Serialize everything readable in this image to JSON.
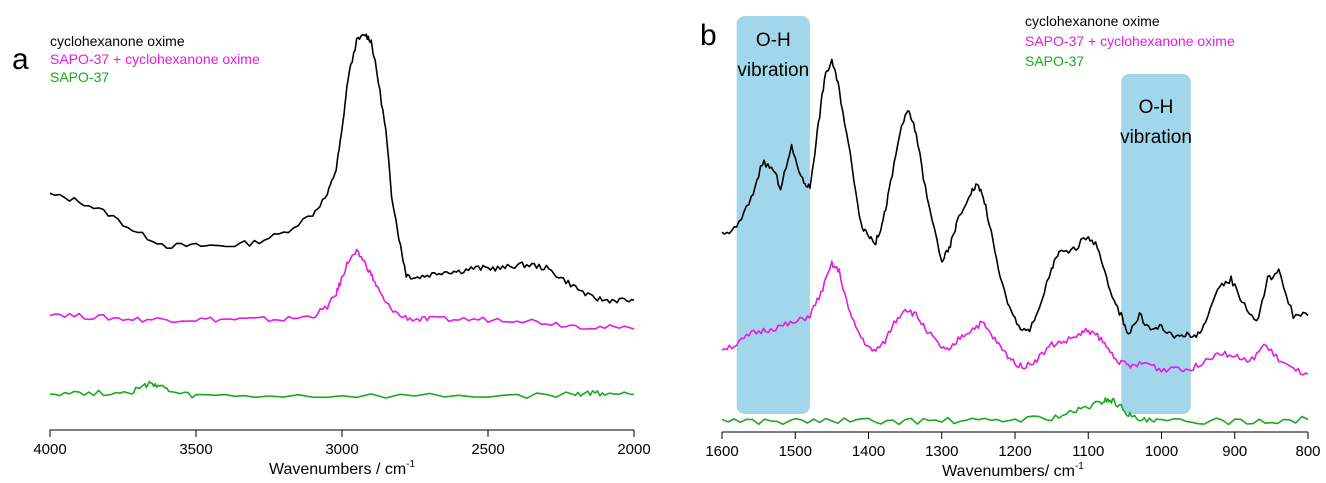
{
  "colors": {
    "black": "#000000",
    "magenta": "#e619e6",
    "green": "#1aaa1a",
    "highlight": "#92cfe6"
  },
  "chart_data": [
    {
      "type": "line",
      "panel": "a",
      "xlabel": "Wavenumbers / cm",
      "xlabel_sup": "-1",
      "xlim": [
        4000,
        2000
      ],
      "x_reversed": true,
      "xticks": [
        4000,
        3500,
        3000,
        2500,
        2000
      ],
      "y_axis_shown": false,
      "grid": false,
      "legend": {
        "placement": "top-left",
        "entries": [
          "cyclohexanone oxime",
          "SAPO-37 + cyclohexanone oxime",
          "SAPO-37"
        ]
      },
      "series": [
        {
          "name": "cyclohexanone oxime",
          "color": "#000000",
          "x": [
            4000,
            3900,
            3800,
            3700,
            3600,
            3500,
            3400,
            3300,
            3200,
            3100,
            3050,
            3020,
            3000,
            2980,
            2950,
            2920,
            2900,
            2880,
            2850,
            2830,
            2800,
            2780,
            2750,
            2700,
            2650,
            2600,
            2550,
            2500,
            2450,
            2400,
            2350,
            2300,
            2250,
            2200,
            2150,
            2100,
            2050,
            2000
          ],
          "y": [
            0.72,
            0.7,
            0.66,
            0.6,
            0.56,
            0.56,
            0.56,
            0.57,
            0.6,
            0.66,
            0.72,
            0.8,
            0.92,
            1.08,
            1.2,
            1.22,
            1.2,
            1.1,
            0.92,
            0.72,
            0.56,
            0.47,
            0.46,
            0.47,
            0.48,
            0.48,
            0.49,
            0.49,
            0.49,
            0.5,
            0.5,
            0.49,
            0.46,
            0.43,
            0.4,
            0.39,
            0.39,
            0.39
          ]
        },
        {
          "name": "SAPO-37 + cyclohexanone oxime",
          "color": "#e619e6",
          "x": [
            4000,
            3900,
            3800,
            3700,
            3600,
            3500,
            3400,
            3300,
            3200,
            3100,
            3050,
            3020,
            3000,
            2980,
            2950,
            2930,
            2900,
            2880,
            2850,
            2800,
            2750,
            2700,
            2600,
            2500,
            2400,
            2300,
            2200,
            2100,
            2000
          ],
          "y": [
            0.35,
            0.34,
            0.335,
            0.33,
            0.33,
            0.33,
            0.33,
            0.33,
            0.33,
            0.34,
            0.37,
            0.41,
            0.46,
            0.51,
            0.54,
            0.52,
            0.47,
            0.43,
            0.38,
            0.34,
            0.33,
            0.33,
            0.33,
            0.33,
            0.33,
            0.32,
            0.31,
            0.305,
            0.3
          ]
        },
        {
          "name": "SAPO-37",
          "color": "#1aaa1a",
          "x": [
            4000,
            3900,
            3800,
            3720,
            3680,
            3650,
            3620,
            3580,
            3500,
            3300,
            3000,
            2700,
            2400,
            2200,
            2150,
            2100,
            2000
          ],
          "y": [
            0.1,
            0.1,
            0.1,
            0.105,
            0.12,
            0.13,
            0.12,
            0.1,
            0.09,
            0.09,
            0.09,
            0.09,
            0.09,
            0.095,
            0.1,
            0.098,
            0.095
          ]
        }
      ]
    },
    {
      "type": "line",
      "panel": "b",
      "xlabel": "Wavenumbers/ cm",
      "xlabel_sup": "-1",
      "xlim": [
        1600,
        800
      ],
      "x_reversed": true,
      "xticks": [
        1600,
        1500,
        1400,
        1300,
        1200,
        1100,
        1000,
        900,
        800
      ],
      "y_axis_shown": false,
      "grid": false,
      "legend": {
        "placement": "top-right",
        "entries": [
          "cyclohexanone oxime",
          "SAPO-37 + cyclohexanone oxime",
          "SAPO-37"
        ]
      },
      "annotations": [
        {
          "label_line1": "O-H",
          "label_line2": "vibration",
          "x_from": 1580,
          "x_to": 1480
        },
        {
          "label_line1": "O-H",
          "label_line2": "vibration",
          "x_from": 1055,
          "x_to": 960
        }
      ],
      "series": [
        {
          "name": "cyclohexanone oxime",
          "color": "#000000",
          "x": [
            1600,
            1580,
            1560,
            1545,
            1530,
            1520,
            1505,
            1490,
            1480,
            1470,
            1460,
            1450,
            1440,
            1425,
            1410,
            1400,
            1390,
            1380,
            1370,
            1355,
            1345,
            1335,
            1320,
            1300,
            1290,
            1280,
            1260,
            1250,
            1240,
            1225,
            1210,
            1195,
            1180,
            1170,
            1150,
            1140,
            1120,
            1100,
            1085,
            1070,
            1055,
            1045,
            1030,
            1015,
            1000,
            985,
            970,
            955,
            940,
            920,
            905,
            890,
            870,
            855,
            840,
            820,
            800
          ],
          "y": [
            0.52,
            0.54,
            0.62,
            0.72,
            0.7,
            0.65,
            0.76,
            0.67,
            0.65,
            0.8,
            0.95,
            1.0,
            0.92,
            0.74,
            0.55,
            0.52,
            0.5,
            0.56,
            0.66,
            0.82,
            0.86,
            0.8,
            0.62,
            0.45,
            0.48,
            0.55,
            0.64,
            0.66,
            0.6,
            0.45,
            0.33,
            0.27,
            0.26,
            0.3,
            0.43,
            0.47,
            0.48,
            0.52,
            0.48,
            0.36,
            0.3,
            0.25,
            0.3,
            0.26,
            0.27,
            0.24,
            0.25,
            0.24,
            0.28,
            0.38,
            0.4,
            0.34,
            0.28,
            0.4,
            0.42,
            0.3,
            0.3
          ]
        },
        {
          "name": "SAPO-37 + cyclohexanone oxime",
          "color": "#e619e6",
          "x": [
            1600,
            1580,
            1560,
            1540,
            1520,
            1500,
            1480,
            1465,
            1450,
            1440,
            1425,
            1410,
            1395,
            1380,
            1365,
            1350,
            1335,
            1320,
            1305,
            1290,
            1275,
            1260,
            1245,
            1230,
            1215,
            1200,
            1185,
            1170,
            1150,
            1130,
            1110,
            1100,
            1085,
            1070,
            1055,
            1040,
            1020,
            1000,
            980,
            960,
            940,
            920,
            900,
            880,
            860,
            840,
            820,
            800
          ],
          "y": [
            0.21,
            0.22,
            0.25,
            0.26,
            0.27,
            0.28,
            0.3,
            0.36,
            0.44,
            0.42,
            0.3,
            0.24,
            0.2,
            0.22,
            0.28,
            0.32,
            0.3,
            0.26,
            0.22,
            0.2,
            0.24,
            0.26,
            0.28,
            0.24,
            0.2,
            0.17,
            0.16,
            0.18,
            0.22,
            0.23,
            0.25,
            0.26,
            0.24,
            0.2,
            0.17,
            0.16,
            0.17,
            0.15,
            0.16,
            0.15,
            0.18,
            0.2,
            0.19,
            0.17,
            0.22,
            0.18,
            0.15,
            0.14
          ]
        },
        {
          "name": "SAPO-37",
          "color": "#1aaa1a",
          "x": [
            1600,
            1550,
            1500,
            1450,
            1400,
            1350,
            1300,
            1250,
            1200,
            1150,
            1120,
            1100,
            1085,
            1075,
            1065,
            1050,
            1040,
            1020,
            1000,
            950,
            900,
            850,
            800
          ],
          "y": [
            0.015,
            0.01,
            0.01,
            0.012,
            0.01,
            0.01,
            0.012,
            0.01,
            0.015,
            0.02,
            0.035,
            0.05,
            0.06,
            0.07,
            0.065,
            0.04,
            0.02,
            0.01,
            0.01,
            0.01,
            0.01,
            0.012,
            0.015
          ]
        }
      ]
    }
  ]
}
